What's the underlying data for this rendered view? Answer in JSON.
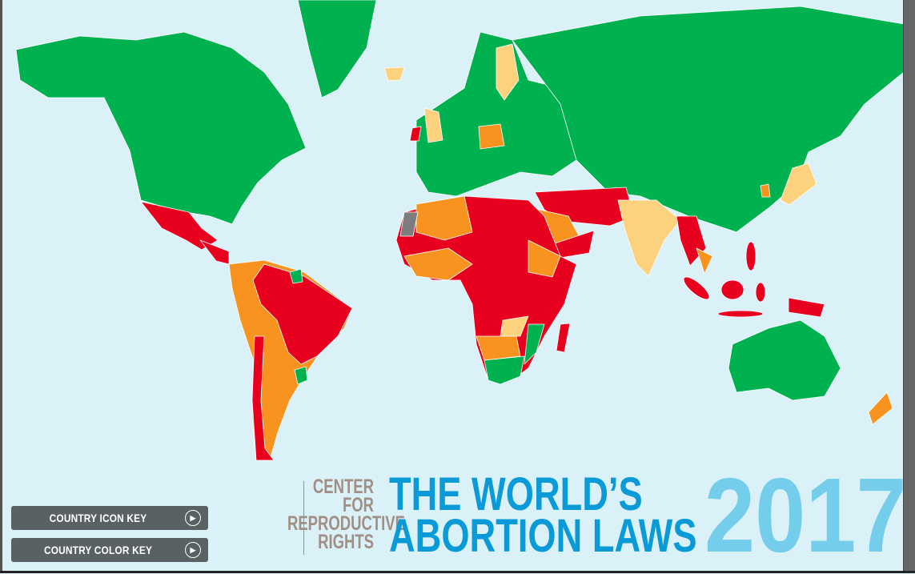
{
  "title": {
    "line1": "THE WORLD’S",
    "line2": "ABORTION LAWS",
    "year": "2017"
  },
  "logo": {
    "lines": [
      "CENTER",
      "FOR",
      "REPRODUCTIVE",
      "RIGHTS"
    ]
  },
  "buttons": {
    "icon_key": {
      "label": "COUNTRY ICON KEY",
      "icon": "play-circle-icon"
    },
    "color_key": {
      "label": "COUNTRY COLOR KEY",
      "icon": "play-circle-icon"
    }
  },
  "colors": {
    "ocean": "#dbf1f8",
    "category_green": "#00b14f",
    "category_red": "#e8001f",
    "category_orange": "#f7931e",
    "category_light_orange": "#fdd27f",
    "no_data_gray": "#7d7d7d",
    "title_blue": "#0a9ad7",
    "year_blue": "#74cdea",
    "logo_taupe": "#a08f85",
    "button_gray": "#5a6163"
  }
}
